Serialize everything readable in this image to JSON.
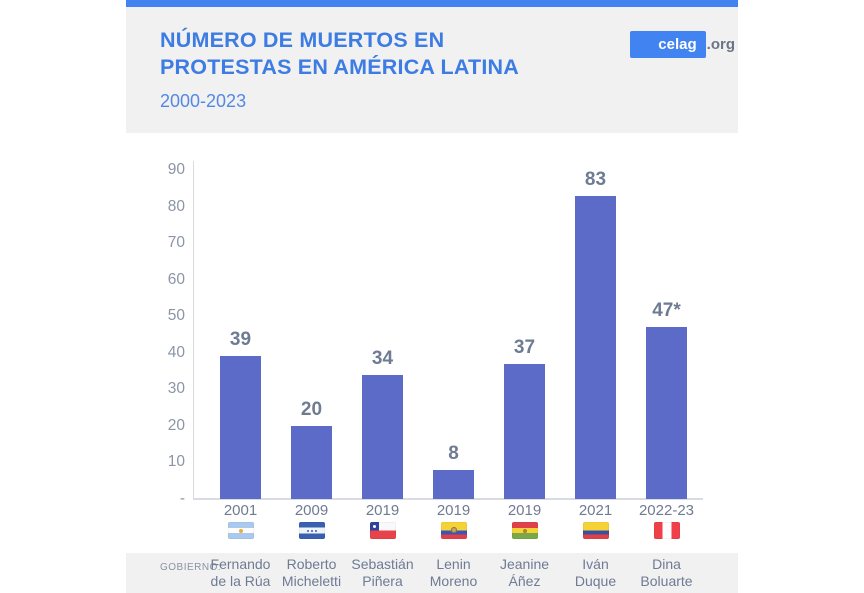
{
  "header": {
    "title_line1": "NÚMERO DE MUERTOS EN",
    "title_line2": "PROTESTAS EN AMÉRICA LATINA",
    "subtitle": "2000-2023",
    "brand": {
      "name": "celag",
      "suffix": ".org"
    },
    "accent_color": "#4183f0",
    "title_color": "#3d7ce3",
    "panel_color": "#f1f1f2"
  },
  "footer": {
    "label": "GOBIERNO:"
  },
  "chart_data": {
    "type": "bar",
    "title": "NÚMERO DE MUERTOS EN PROTESTAS EN AMÉRICA LATINA",
    "subtitle": "2000-2023",
    "xlabel": "",
    "ylabel": "",
    "ylim": [
      0,
      90
    ],
    "ytick_interval": 10,
    "grid": false,
    "legend": "none",
    "bar_color": "#5c6ac8",
    "yticks": [
      {
        "value": 90,
        "label": "90"
      },
      {
        "value": 80,
        "label": "80"
      },
      {
        "value": 70,
        "label": "70"
      },
      {
        "value": 60,
        "label": "60"
      },
      {
        "value": 50,
        "label": "50"
      },
      {
        "value": 40,
        "label": "40"
      },
      {
        "value": 30,
        "label": "30"
      },
      {
        "value": 20,
        "label": "20"
      },
      {
        "value": 10,
        "label": "10"
      },
      {
        "value": 0,
        "label": "-"
      }
    ],
    "categories": [
      "2001",
      "2009",
      "2019",
      "2019",
      "2019",
      "2021",
      "2022-23"
    ],
    "values": [
      39,
      20,
      34,
      8,
      37,
      83,
      47
    ],
    "bars": [
      {
        "year": "2001",
        "value": 39,
        "value_label": "39",
        "country": "argentina",
        "government": [
          "Fernando",
          "de la Rúa"
        ]
      },
      {
        "year": "2009",
        "value": 20,
        "value_label": "20",
        "country": "honduras",
        "government": [
          "Roberto",
          "Micheletti"
        ]
      },
      {
        "year": "2019",
        "value": 34,
        "value_label": "34",
        "country": "chile",
        "government": [
          "Sebastián",
          "Piñera"
        ]
      },
      {
        "year": "2019",
        "value": 8,
        "value_label": "8",
        "country": "ecuador",
        "government": [
          "Lenin",
          "Moreno"
        ]
      },
      {
        "year": "2019",
        "value": 37,
        "value_label": "37",
        "country": "bolivia",
        "government": [
          "Jeanine",
          "Áñez"
        ]
      },
      {
        "year": "2021",
        "value": 83,
        "value_label": "83",
        "country": "colombia",
        "government": [
          "Iván",
          "Duque"
        ]
      },
      {
        "year": "2022-23",
        "value": 47,
        "value_label": "47*",
        "country": "peru",
        "government": [
          "Dina",
          "Boluarte"
        ]
      }
    ]
  }
}
